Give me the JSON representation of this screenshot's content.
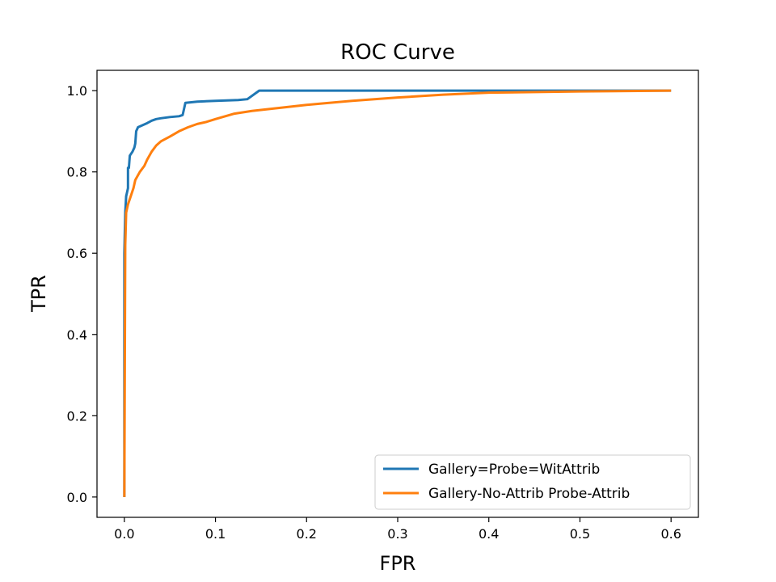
{
  "chart_data": {
    "type": "line",
    "title": "ROC Curve",
    "xlabel": "FPR",
    "ylabel": "TPR",
    "xlim": [
      -0.03,
      0.63
    ],
    "ylim": [
      -0.05,
      1.05
    ],
    "xticks": [
      0.0,
      0.1,
      0.2,
      0.3,
      0.4,
      0.5,
      0.6
    ],
    "yticks": [
      0.0,
      0.2,
      0.4,
      0.6,
      0.8,
      1.0
    ],
    "xtick_labels": [
      "0.0",
      "0.1",
      "0.2",
      "0.3",
      "0.4",
      "0.5",
      "0.6"
    ],
    "ytick_labels": [
      "0.0",
      "0.2",
      "0.4",
      "0.6",
      "0.8",
      "1.0"
    ],
    "grid": false,
    "legend_position": "bottom-right",
    "series": [
      {
        "name": "Gallery=Probe=WitAttrib",
        "color": "#1f77b4",
        "points": [
          [
            0.0,
            0.0
          ],
          [
            0.0,
            0.6
          ],
          [
            0.001,
            0.7
          ],
          [
            0.002,
            0.74
          ],
          [
            0.004,
            0.76
          ],
          [
            0.004,
            0.81
          ],
          [
            0.005,
            0.81
          ],
          [
            0.006,
            0.84
          ],
          [
            0.009,
            0.85
          ],
          [
            0.011,
            0.86
          ],
          [
            0.012,
            0.87
          ],
          [
            0.013,
            0.9
          ],
          [
            0.015,
            0.91
          ],
          [
            0.02,
            0.915
          ],
          [
            0.025,
            0.92
          ],
          [
            0.03,
            0.926
          ],
          [
            0.035,
            0.93
          ],
          [
            0.04,
            0.932
          ],
          [
            0.05,
            0.935
          ],
          [
            0.06,
            0.937
          ],
          [
            0.064,
            0.94
          ],
          [
            0.067,
            0.97
          ],
          [
            0.08,
            0.973
          ],
          [
            0.1,
            0.975
          ],
          [
            0.125,
            0.977
          ],
          [
            0.135,
            0.979
          ],
          [
            0.148,
            1.0
          ],
          [
            0.2,
            1.0
          ],
          [
            0.6,
            1.0
          ]
        ]
      },
      {
        "name": "Gallery-No-Attrib  Probe-Attrib",
        "color": "#ff7f0e",
        "points": [
          [
            0.0,
            0.0
          ],
          [
            0.001,
            0.62
          ],
          [
            0.002,
            0.7
          ],
          [
            0.004,
            0.72
          ],
          [
            0.007,
            0.74
          ],
          [
            0.01,
            0.76
          ],
          [
            0.012,
            0.78
          ],
          [
            0.017,
            0.8
          ],
          [
            0.022,
            0.815
          ],
          [
            0.025,
            0.83
          ],
          [
            0.03,
            0.85
          ],
          [
            0.035,
            0.865
          ],
          [
            0.04,
            0.875
          ],
          [
            0.05,
            0.887
          ],
          [
            0.06,
            0.9
          ],
          [
            0.07,
            0.91
          ],
          [
            0.08,
            0.918
          ],
          [
            0.09,
            0.923
          ],
          [
            0.1,
            0.93
          ],
          [
            0.12,
            0.943
          ],
          [
            0.14,
            0.95
          ],
          [
            0.16,
            0.955
          ],
          [
            0.18,
            0.96
          ],
          [
            0.2,
            0.965
          ],
          [
            0.25,
            0.975
          ],
          [
            0.3,
            0.983
          ],
          [
            0.35,
            0.99
          ],
          [
            0.4,
            0.995
          ],
          [
            0.5,
            0.998
          ],
          [
            0.6,
            1.0
          ]
        ]
      }
    ]
  }
}
